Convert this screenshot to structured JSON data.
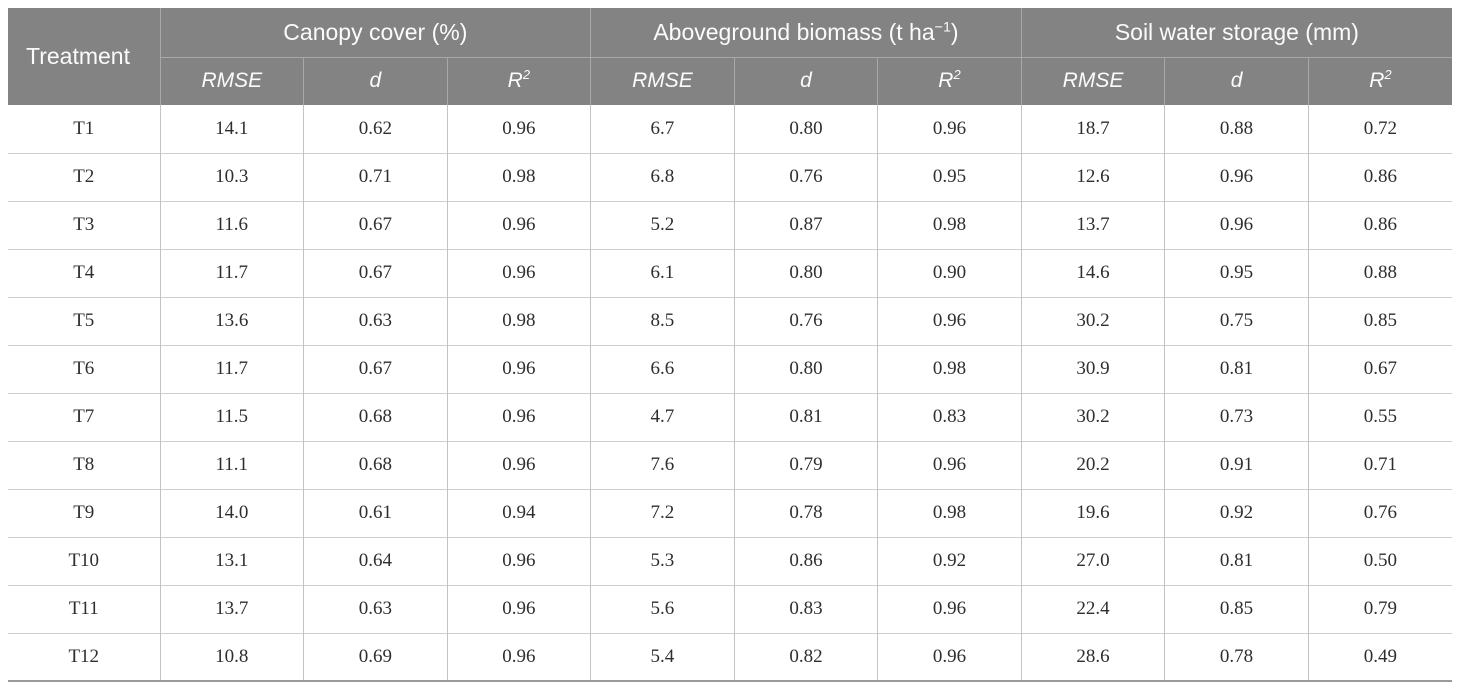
{
  "table": {
    "corner_label": "Treatment",
    "groups": [
      {
        "pre": "Canopy cover (%)",
        "sup": "",
        "post": ""
      },
      {
        "pre": "Aboveground biomass (t ha",
        "sup": "−1",
        "post": ")"
      },
      {
        "pre": "Soil water storage (mm)",
        "sup": "",
        "post": ""
      }
    ],
    "metrics": [
      {
        "text": "RMSE",
        "sup": ""
      },
      {
        "text": "d",
        "sup": ""
      },
      {
        "text": "R",
        "sup": "2"
      }
    ],
    "rows": [
      {
        "treatment": "T1",
        "values": [
          "14.1",
          "0.62",
          "0.96",
          "6.7",
          "0.80",
          "0.96",
          "18.7",
          "0.88",
          "0.72"
        ]
      },
      {
        "treatment": "T2",
        "values": [
          "10.3",
          "0.71",
          "0.98",
          "6.8",
          "0.76",
          "0.95",
          "12.6",
          "0.96",
          "0.86"
        ]
      },
      {
        "treatment": "T3",
        "values": [
          "11.6",
          "0.67",
          "0.96",
          "5.2",
          "0.87",
          "0.98",
          "13.7",
          "0.96",
          "0.86"
        ]
      },
      {
        "treatment": "T4",
        "values": [
          "11.7",
          "0.67",
          "0.96",
          "6.1",
          "0.80",
          "0.90",
          "14.6",
          "0.95",
          "0.88"
        ]
      },
      {
        "treatment": "T5",
        "values": [
          "13.6",
          "0.63",
          "0.98",
          "8.5",
          "0.76",
          "0.96",
          "30.2",
          "0.75",
          "0.85"
        ]
      },
      {
        "treatment": "T6",
        "values": [
          "11.7",
          "0.67",
          "0.96",
          "6.6",
          "0.80",
          "0.98",
          "30.9",
          "0.81",
          "0.67"
        ]
      },
      {
        "treatment": "T7",
        "values": [
          "11.5",
          "0.68",
          "0.96",
          "4.7",
          "0.81",
          "0.83",
          "30.2",
          "0.73",
          "0.55"
        ]
      },
      {
        "treatment": "T8",
        "values": [
          "11.1",
          "0.68",
          "0.96",
          "7.6",
          "0.79",
          "0.96",
          "20.2",
          "0.91",
          "0.71"
        ]
      },
      {
        "treatment": "T9",
        "values": [
          "14.0",
          "0.61",
          "0.94",
          "7.2",
          "0.78",
          "0.98",
          "19.6",
          "0.92",
          "0.76"
        ]
      },
      {
        "treatment": "T10",
        "values": [
          "13.1",
          "0.64",
          "0.96",
          "5.3",
          "0.86",
          "0.92",
          "27.0",
          "0.81",
          "0.50"
        ]
      },
      {
        "treatment": "T11",
        "values": [
          "13.7",
          "0.63",
          "0.96",
          "5.6",
          "0.83",
          "0.96",
          "22.4",
          "0.85",
          "0.79"
        ]
      },
      {
        "treatment": "T12",
        "values": [
          "10.8",
          "0.69",
          "0.96",
          "5.4",
          "0.82",
          "0.96",
          "28.6",
          "0.78",
          "0.49"
        ]
      }
    ],
    "colors": {
      "header_bg": "#838383",
      "header_text": "#fbfbfb",
      "header_divider": "#a8a8a8",
      "body_text": "#2e2e2e",
      "grid_v": "#c3c3c3",
      "grid_h": "#cfcfcf",
      "bottom_border": "#9a9a9a"
    }
  }
}
